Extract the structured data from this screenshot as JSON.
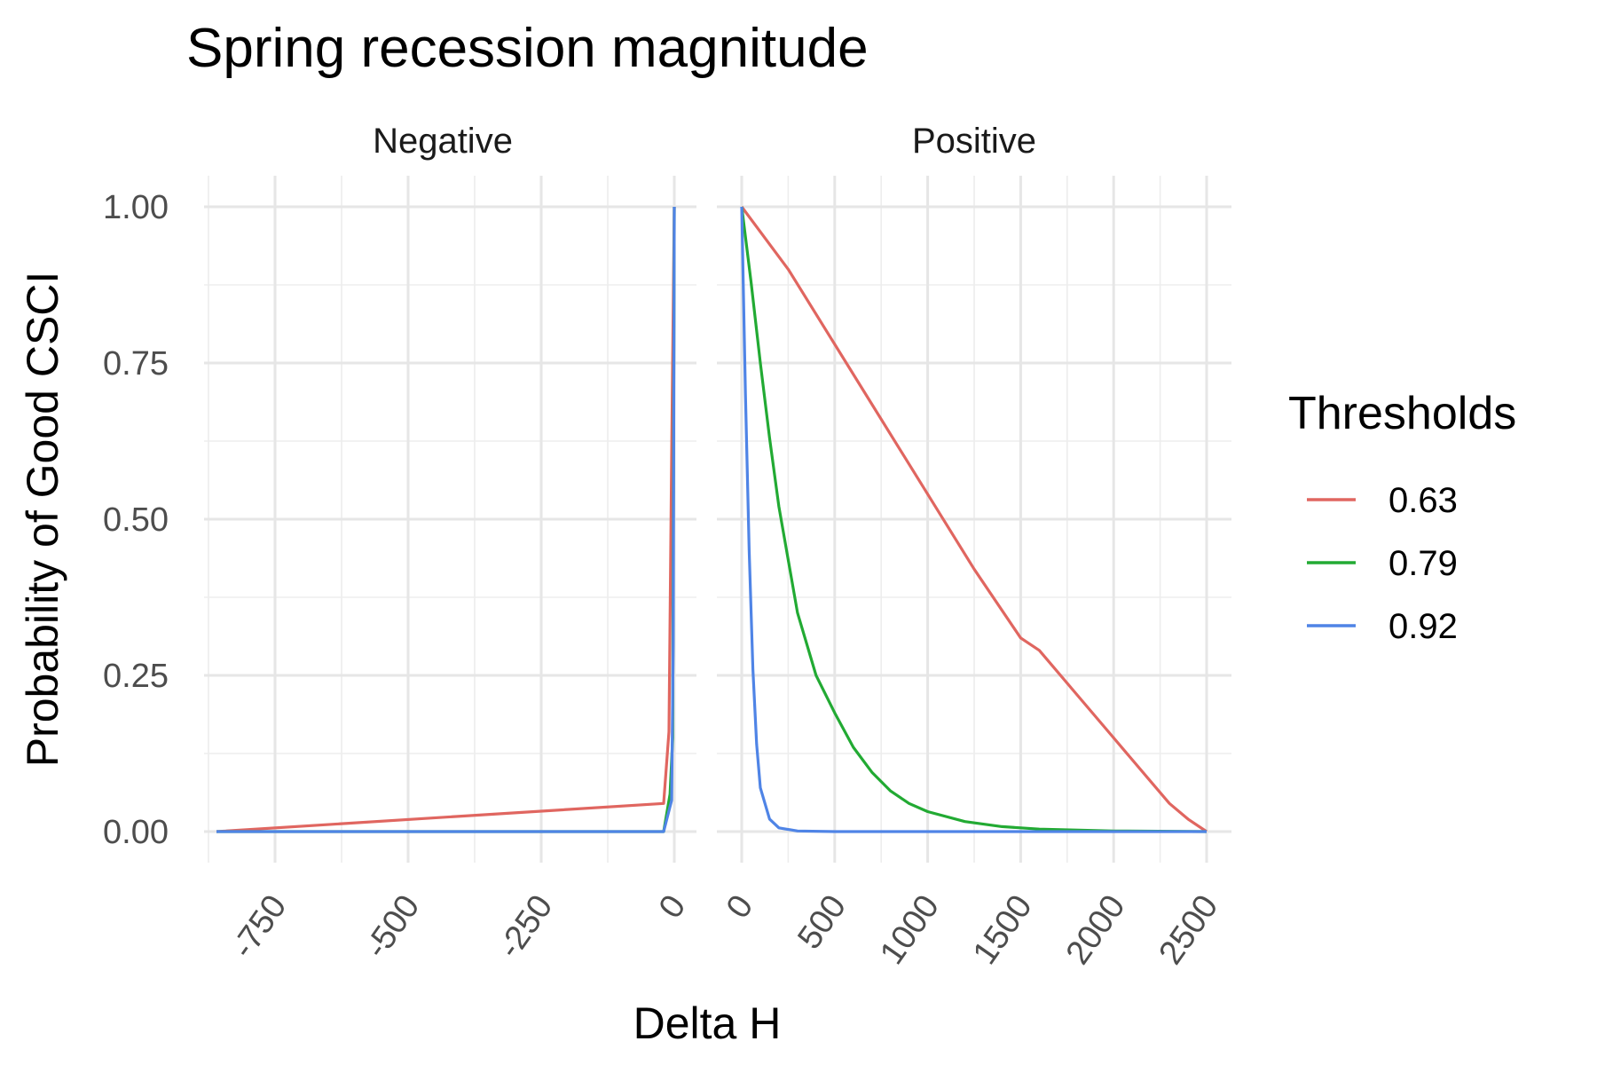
{
  "chart_data": {
    "type": "line",
    "title": "Spring recession magnitude",
    "xlabel": "Delta H",
    "ylabel": "Probability of Good CSCI",
    "legend": {
      "title": "Thresholds",
      "position": "right"
    },
    "grid": true,
    "ylim": [
      0,
      1
    ],
    "yticks": [
      "0.00",
      "0.25",
      "0.50",
      "0.75",
      "1.00"
    ],
    "facets": [
      {
        "label": "Negative",
        "xlim": [
          -870,
          0
        ],
        "xticks": [
          "-750",
          "-500",
          "-250",
          "0"
        ],
        "series": [
          {
            "name": "0.63",
            "x": [
              -860,
              -20,
              -10,
              -5,
              0
            ],
            "y": [
              0.0,
              0.045,
              0.16,
              0.6,
              1.0
            ]
          },
          {
            "name": "0.79",
            "x": [
              -860,
              -20,
              -8,
              -3,
              0
            ],
            "y": [
              0.0,
              0.0,
              0.06,
              0.15,
              1.0
            ]
          },
          {
            "name": "0.92",
            "x": [
              -860,
              -20,
              -5,
              -2,
              0
            ],
            "y": [
              0.0,
              0.0,
              0.05,
              0.3,
              1.0
            ]
          }
        ]
      },
      {
        "label": "Positive",
        "xlim": [
          0,
          2500
        ],
        "xticks": [
          "0",
          "500",
          "1000",
          "1500",
          "2000",
          "2500"
        ],
        "series": [
          {
            "name": "0.63",
            "x": [
              0,
              250,
              500,
              750,
              1000,
              1250,
              1500,
              1600,
              1800,
              2000,
              2200,
              2300,
              2400,
              2500
            ],
            "y": [
              1.0,
              0.9,
              0.78,
              0.66,
              0.54,
              0.42,
              0.31,
              0.29,
              0.22,
              0.15,
              0.08,
              0.045,
              0.02,
              0.0
            ]
          },
          {
            "name": "0.79",
            "x": [
              0,
              50,
              100,
              150,
              200,
              300,
              400,
              500,
              600,
              700,
              800,
              900,
              1000,
              1200,
              1400,
              1600,
              2000,
              2500
            ],
            "y": [
              1.0,
              0.88,
              0.75,
              0.63,
              0.52,
              0.35,
              0.25,
              0.19,
              0.135,
              0.095,
              0.065,
              0.045,
              0.032,
              0.016,
              0.008,
              0.004,
              0.001,
              0.0
            ]
          },
          {
            "name": "0.92",
            "x": [
              0,
              20,
              40,
              60,
              80,
              100,
              150,
              200,
              300,
              500,
              1000,
              2500
            ],
            "y": [
              1.0,
              0.7,
              0.45,
              0.26,
              0.14,
              0.07,
              0.02,
              0.006,
              0.001,
              0.0,
              0.0,
              0.0
            ]
          }
        ]
      }
    ],
    "colors": {
      "0.63": "#e06660",
      "0.79": "#22aa33",
      "0.92": "#4f84e6"
    }
  }
}
